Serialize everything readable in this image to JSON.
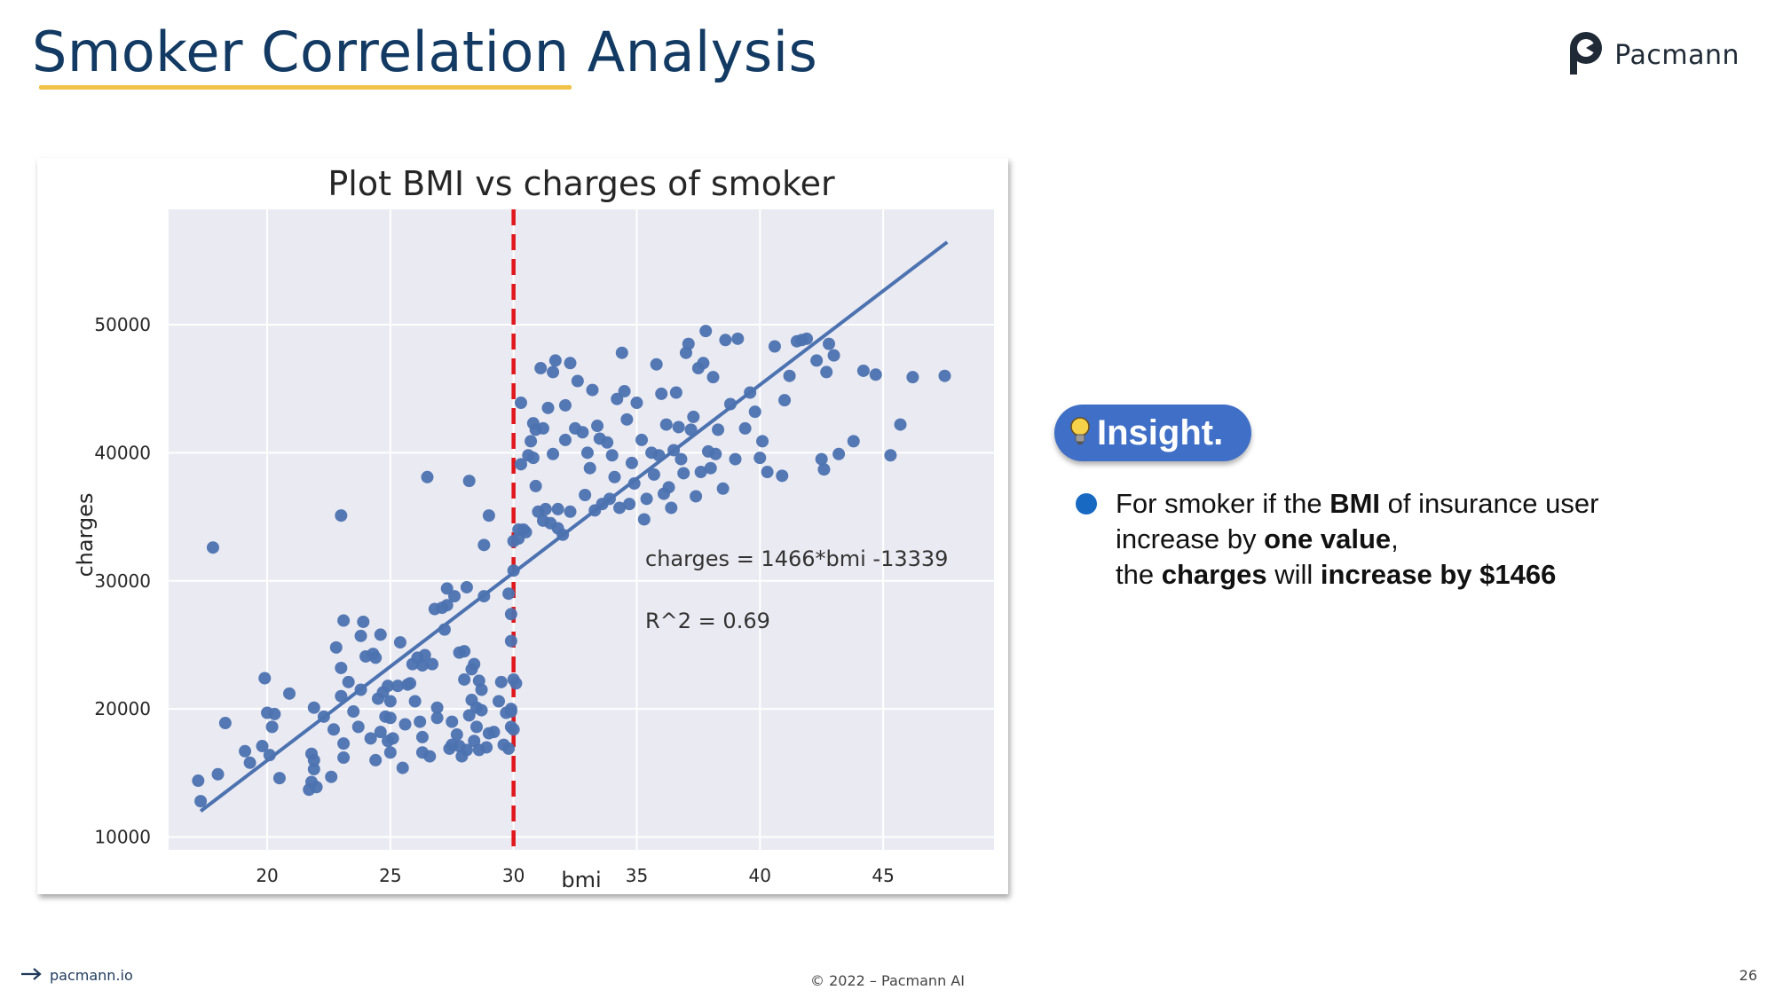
{
  "page": {
    "title": "Smoker Correlation Analysis",
    "brand": "Pacmann",
    "footer_link": "pacmann.io",
    "footer_copyright": "© 2022 – Pacmann AI",
    "page_number": "26"
  },
  "insight": {
    "badge": "Insight.",
    "line1_prefix": "For smoker if the ",
    "line1_bold": "BMI",
    "line1_suffix": " of insurance user",
    "line2_prefix": "increase by ",
    "line2_bold": "one value",
    "line2_suffix": ",",
    "line3_prefix": "the ",
    "line3_bold1": "charges",
    "line3_mid": " will ",
    "line3_bold2": "increase by $1466"
  },
  "colors": {
    "point": "#4c72b0",
    "regression_line": "#4c72b0",
    "threshold_line": "#e0171c",
    "plot_bg": "#eaeaf2",
    "title": "#123a63",
    "accent": "#f1c24a",
    "badge": "#3f6fc6"
  },
  "chart_data": {
    "type": "scatter",
    "title": "Plot BMI vs charges of smoker",
    "xlabel": "bmi",
    "ylabel": "charges",
    "xlim": [
      16.0,
      49.5
    ],
    "ylim": [
      9000,
      59000
    ],
    "xticks": [
      20,
      25,
      30,
      35,
      40,
      45
    ],
    "yticks": [
      10000,
      20000,
      30000,
      40000,
      50000
    ],
    "grid": true,
    "threshold_x": 30,
    "regression": {
      "slope": 1466,
      "intercept": -13339,
      "x_range": [
        17.3,
        47.6
      ]
    },
    "annotations": [
      "charges = 1466*bmi -13339",
      "R^2 = 0.69"
    ],
    "points": [
      [
        17.2,
        14400
      ],
      [
        17.3,
        12800
      ],
      [
        17.8,
        32600
      ],
      [
        18.0,
        14900
      ],
      [
        18.3,
        18900
      ],
      [
        19.1,
        16700
      ],
      [
        19.3,
        15800
      ],
      [
        19.8,
        17100
      ],
      [
        19.9,
        22400
      ],
      [
        20.0,
        19700
      ],
      [
        20.1,
        16400
      ],
      [
        20.2,
        18600
      ],
      [
        20.3,
        19600
      ],
      [
        20.5,
        14600
      ],
      [
        20.9,
        21200
      ],
      [
        21.7,
        13700
      ],
      [
        21.8,
        14300
      ],
      [
        21.8,
        16500
      ],
      [
        21.9,
        15300
      ],
      [
        21.9,
        16000
      ],
      [
        21.9,
        20100
      ],
      [
        22.0,
        13900
      ],
      [
        22.3,
        19400
      ],
      [
        22.6,
        14700
      ],
      [
        22.7,
        18400
      ],
      [
        22.8,
        24800
      ],
      [
        23.0,
        35100
      ],
      [
        23.0,
        21000
      ],
      [
        23.0,
        23200
      ],
      [
        23.1,
        26900
      ],
      [
        23.1,
        16200
      ],
      [
        23.1,
        17300
      ],
      [
        23.3,
        22100
      ],
      [
        23.5,
        19800
      ],
      [
        23.7,
        18600
      ],
      [
        23.8,
        21500
      ],
      [
        23.8,
        25700
      ],
      [
        23.9,
        26800
      ],
      [
        24.0,
        24100
      ],
      [
        24.2,
        17700
      ],
      [
        24.3,
        24300
      ],
      [
        24.4,
        16000
      ],
      [
        24.4,
        24000
      ],
      [
        24.5,
        20800
      ],
      [
        24.6,
        18200
      ],
      [
        24.6,
        25800
      ],
      [
        24.7,
        21300
      ],
      [
        24.8,
        19400
      ],
      [
        24.9,
        17500
      ],
      [
        24.9,
        21800
      ],
      [
        25.0,
        16600
      ],
      [
        25.0,
        19300
      ],
      [
        25.0,
        20600
      ],
      [
        25.1,
        17700
      ],
      [
        25.3,
        21800
      ],
      [
        25.4,
        25200
      ],
      [
        25.5,
        15400
      ],
      [
        25.6,
        18800
      ],
      [
        25.7,
        21900
      ],
      [
        25.8,
        22000
      ],
      [
        25.9,
        23500
      ],
      [
        26.0,
        20600
      ],
      [
        26.1,
        24000
      ],
      [
        26.2,
        19000
      ],
      [
        26.3,
        17800
      ],
      [
        26.3,
        16600
      ],
      [
        26.3,
        23400
      ],
      [
        26.4,
        24200
      ],
      [
        26.5,
        38100
      ],
      [
        26.6,
        16300
      ],
      [
        26.7,
        23500
      ],
      [
        26.8,
        27800
      ],
      [
        26.9,
        19300
      ],
      [
        26.9,
        20100
      ],
      [
        27.1,
        27900
      ],
      [
        27.2,
        26200
      ],
      [
        27.3,
        28100
      ],
      [
        27.3,
        29400
      ],
      [
        27.4,
        16900
      ],
      [
        27.5,
        17200
      ],
      [
        27.5,
        19000
      ],
      [
        27.6,
        28800
      ],
      [
        27.7,
        18000
      ],
      [
        27.8,
        17100
      ],
      [
        27.8,
        24400
      ],
      [
        27.9,
        16300
      ],
      [
        28.0,
        22300
      ],
      [
        28.0,
        24500
      ],
      [
        28.1,
        16800
      ],
      [
        28.1,
        29500
      ],
      [
        28.2,
        37800
      ],
      [
        28.2,
        19500
      ],
      [
        28.3,
        20700
      ],
      [
        28.3,
        23100
      ],
      [
        28.4,
        17500
      ],
      [
        28.4,
        23500
      ],
      [
        28.5,
        18600
      ],
      [
        28.5,
        20100
      ],
      [
        28.6,
        16800
      ],
      [
        28.6,
        22200
      ],
      [
        28.7,
        19900
      ],
      [
        28.7,
        21500
      ],
      [
        28.8,
        28800
      ],
      [
        28.8,
        32800
      ],
      [
        28.9,
        17000
      ],
      [
        29.0,
        18100
      ],
      [
        29.0,
        35100
      ],
      [
        29.2,
        18200
      ],
      [
        29.4,
        20600
      ],
      [
        29.5,
        22100
      ],
      [
        29.6,
        17200
      ],
      [
        29.7,
        19700
      ],
      [
        29.8,
        29000
      ],
      [
        29.8,
        16900
      ],
      [
        30.0,
        18400
      ],
      [
        29.9,
        19800
      ],
      [
        29.9,
        20000
      ],
      [
        29.9,
        27400
      ],
      [
        29.9,
        25300
      ],
      [
        29.9,
        18600
      ],
      [
        30.0,
        30800
      ],
      [
        30.0,
        33100
      ],
      [
        30.0,
        22300
      ],
      [
        30.1,
        22000
      ],
      [
        30.2,
        33300
      ],
      [
        30.2,
        34000
      ],
      [
        30.3,
        39100
      ],
      [
        30.3,
        43900
      ],
      [
        30.4,
        34000
      ],
      [
        30.5,
        33800
      ],
      [
        30.6,
        39800
      ],
      [
        30.7,
        40900
      ],
      [
        30.8,
        42300
      ],
      [
        30.8,
        39600
      ],
      [
        30.9,
        41800
      ],
      [
        30.9,
        37400
      ],
      [
        31.0,
        35400
      ],
      [
        31.1,
        46600
      ],
      [
        31.2,
        41900
      ],
      [
        31.2,
        34700
      ],
      [
        31.3,
        35600
      ],
      [
        31.4,
        43500
      ],
      [
        31.5,
        34500
      ],
      [
        31.6,
        39900
      ],
      [
        31.6,
        46300
      ],
      [
        31.7,
        47200
      ],
      [
        31.8,
        35600
      ],
      [
        31.8,
        34100
      ],
      [
        32.0,
        33600
      ],
      [
        32.1,
        41000
      ],
      [
        32.1,
        43700
      ],
      [
        32.3,
        47000
      ],
      [
        32.3,
        35400
      ],
      [
        32.5,
        41900
      ],
      [
        32.6,
        45600
      ],
      [
        32.8,
        41600
      ],
      [
        32.9,
        36700
      ],
      [
        33.0,
        40000
      ],
      [
        33.1,
        38800
      ],
      [
        33.2,
        44900
      ],
      [
        33.3,
        35500
      ],
      [
        33.4,
        42100
      ],
      [
        33.5,
        41100
      ],
      [
        33.6,
        36000
      ],
      [
        33.8,
        40800
      ],
      [
        33.9,
        36400
      ],
      [
        34.0,
        39800
      ],
      [
        34.1,
        38100
      ],
      [
        34.2,
        44200
      ],
      [
        34.3,
        35700
      ],
      [
        34.4,
        47800
      ],
      [
        34.5,
        44800
      ],
      [
        34.6,
        42600
      ],
      [
        34.7,
        36000
      ],
      [
        34.8,
        39200
      ],
      [
        34.9,
        37600
      ],
      [
        35.0,
        43900
      ],
      [
        35.2,
        41000
      ],
      [
        35.3,
        34800
      ],
      [
        35.4,
        36400
      ],
      [
        35.6,
        40000
      ],
      [
        35.7,
        38300
      ],
      [
        35.8,
        46900
      ],
      [
        35.9,
        39800
      ],
      [
        36.0,
        44600
      ],
      [
        36.1,
        36800
      ],
      [
        36.2,
        42200
      ],
      [
        36.3,
        37300
      ],
      [
        36.4,
        35700
      ],
      [
        36.5,
        40200
      ],
      [
        36.6,
        44700
      ],
      [
        36.7,
        42000
      ],
      [
        36.8,
        39500
      ],
      [
        36.9,
        38400
      ],
      [
        37.0,
        47800
      ],
      [
        37.1,
        48500
      ],
      [
        37.2,
        41800
      ],
      [
        37.3,
        42800
      ],
      [
        37.4,
        36600
      ],
      [
        37.5,
        46600
      ],
      [
        37.6,
        38500
      ],
      [
        37.7,
        47000
      ],
      [
        37.8,
        49500
      ],
      [
        37.9,
        40100
      ],
      [
        38.0,
        38800
      ],
      [
        38.1,
        45900
      ],
      [
        38.2,
        39900
      ],
      [
        38.3,
        41800
      ],
      [
        38.5,
        37200
      ],
      [
        38.6,
        48800
      ],
      [
        38.8,
        43800
      ],
      [
        39.0,
        39500
      ],
      [
        39.1,
        48900
      ],
      [
        39.4,
        41900
      ],
      [
        39.6,
        44700
      ],
      [
        39.8,
        43200
      ],
      [
        40.0,
        39600
      ],
      [
        40.1,
        40900
      ],
      [
        40.3,
        38500
      ],
      [
        40.6,
        48300
      ],
      [
        40.9,
        38200
      ],
      [
        41.0,
        44100
      ],
      [
        41.2,
        46000
      ],
      [
        41.5,
        48700
      ],
      [
        41.7,
        48800
      ],
      [
        41.9,
        48900
      ],
      [
        42.3,
        47200
      ],
      [
        42.5,
        39500
      ],
      [
        42.6,
        38700
      ],
      [
        42.7,
        46300
      ],
      [
        42.8,
        48500
      ],
      [
        43.0,
        47600
      ],
      [
        43.2,
        39900
      ],
      [
        43.8,
        40900
      ],
      [
        44.2,
        46400
      ],
      [
        44.7,
        46100
      ],
      [
        45.3,
        39800
      ],
      [
        45.7,
        42200
      ],
      [
        46.2,
        45900
      ],
      [
        47.5,
        46000
      ]
    ]
  }
}
